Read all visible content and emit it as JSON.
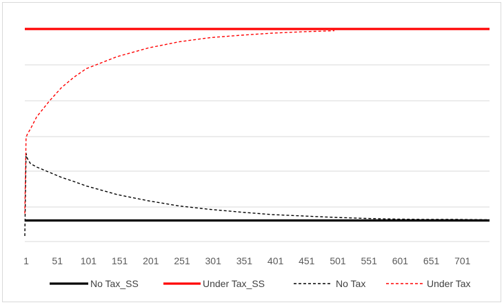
{
  "chart_data": {
    "type": "line",
    "title": "",
    "xlabel": "",
    "ylabel": "",
    "x_tick_labels": [
      "1",
      "51",
      "101",
      "151",
      "201",
      "251",
      "301",
      "351",
      "401",
      "451",
      "501",
      "551",
      "601",
      "651",
      "701"
    ],
    "xlim": [
      1,
      750
    ],
    "ylim": [
      0,
      6
    ],
    "grid": "horizontal",
    "y_axis_labels_shown": false,
    "legend_position": "bottom",
    "series": [
      {
        "name": "No Tax_SS",
        "style": "solid",
        "color": "#000000",
        "x": [
          1,
          750
        ],
        "y": [
          0.65,
          0.65
        ]
      },
      {
        "name": "Under Tax_SS",
        "style": "solid",
        "color": "#ff0000",
        "x": [
          1,
          750
        ],
        "y": [
          6.2,
          6.2
        ]
      },
      {
        "name": "No Tax",
        "style": "dashed",
        "color": "#000000",
        "x": [
          1,
          3,
          5,
          10,
          20,
          40,
          60,
          80,
          100,
          150,
          200,
          250,
          300,
          350,
          400,
          450,
          500,
          550,
          600,
          650,
          700,
          750
        ],
        "y": [
          0.2,
          2.6,
          2.45,
          2.3,
          2.2,
          2.05,
          1.9,
          1.78,
          1.65,
          1.4,
          1.22,
          1.07,
          0.97,
          0.89,
          0.82,
          0.78,
          0.74,
          0.71,
          0.69,
          0.68,
          0.68,
          0.67
        ]
      },
      {
        "name": "Under Tax",
        "style": "dashed",
        "color": "#ff0000",
        "x": [
          1,
          3,
          5,
          10,
          20,
          40,
          60,
          80,
          100,
          150,
          200,
          250,
          300,
          350,
          400,
          450,
          500
        ],
        "y": [
          0.85,
          3.05,
          3.15,
          3.3,
          3.65,
          4.1,
          4.5,
          4.8,
          5.05,
          5.4,
          5.65,
          5.83,
          5.95,
          6.02,
          6.08,
          6.12,
          6.15
        ]
      }
    ]
  }
}
